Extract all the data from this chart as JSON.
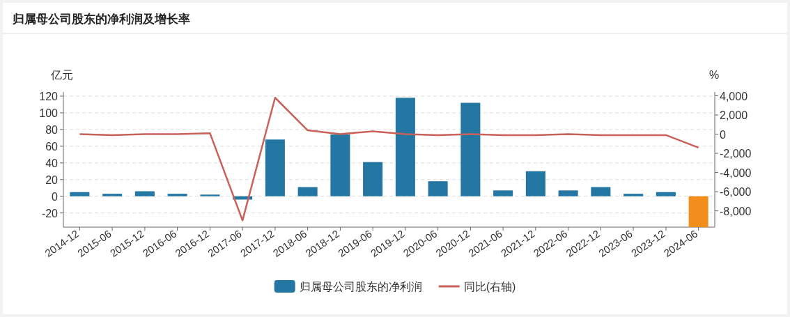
{
  "chart_data": {
    "type": "bar",
    "title": "归属母公司股东的净利润及增长率",
    "ylabel": "亿元",
    "y2label": "%",
    "categories": [
      "2014-12",
      "2015-06",
      "2015-12",
      "2016-06",
      "2016-12",
      "2017-06",
      "2017-12",
      "2018-06",
      "2018-12",
      "2019-06",
      "2019-12",
      "2020-06",
      "2020-12",
      "2021-06",
      "2021-12",
      "2022-06",
      "2022-12",
      "2023-06",
      "2023-12",
      "2024-06"
    ],
    "series": [
      {
        "name": "归属母公司股东的净利润",
        "color": "#2577a3",
        "colors": [
          "#2577a3",
          "#2577a3",
          "#2577a3",
          "#2577a3",
          "#2577a3",
          "#2577a3",
          "#2577a3",
          "#2577a3",
          "#2577a3",
          "#2577a3",
          "#2577a3",
          "#2577a3",
          "#2577a3",
          "#2577a3",
          "#2577a3",
          "#2577a3",
          "#2577a3",
          "#2577a3",
          "#2577a3",
          "#f28e1c"
        ],
        "values": [
          5,
          3,
          6,
          3,
          2,
          -4,
          68,
          11,
          74,
          41,
          118,
          18,
          112,
          7,
          30,
          7,
          11,
          3,
          5,
          -37
        ]
      },
      {
        "name": "同比(右轴)",
        "type": "line",
        "axis": "y2",
        "color": "#c9605a",
        "values": [
          0,
          -100,
          0,
          0,
          100,
          -9000,
          3800,
          400,
          0,
          300,
          0,
          -100,
          0,
          -100,
          -100,
          0,
          -100,
          -100,
          -100,
          -1400
        ]
      }
    ],
    "ylim": [
      -37,
      125
    ],
    "yticks": [
      -20,
      0,
      20,
      40,
      60,
      80,
      100,
      120
    ],
    "y2lim": [
      -9700,
      4400
    ],
    "y2ticks": [
      {
        "value": -8000,
        "label": "-8,000"
      },
      {
        "value": -6000,
        "label": "-6,000"
      },
      {
        "value": -4000,
        "label": "-4,000"
      },
      {
        "value": -2000,
        "label": "-2,000"
      },
      0,
      {
        "value": 2000,
        "label": "2,000"
      },
      {
        "value": 4000,
        "label": "4,000"
      }
    ],
    "grid": "y",
    "legend": "bottom",
    "marker": "none",
    "line_style": "solid"
  }
}
